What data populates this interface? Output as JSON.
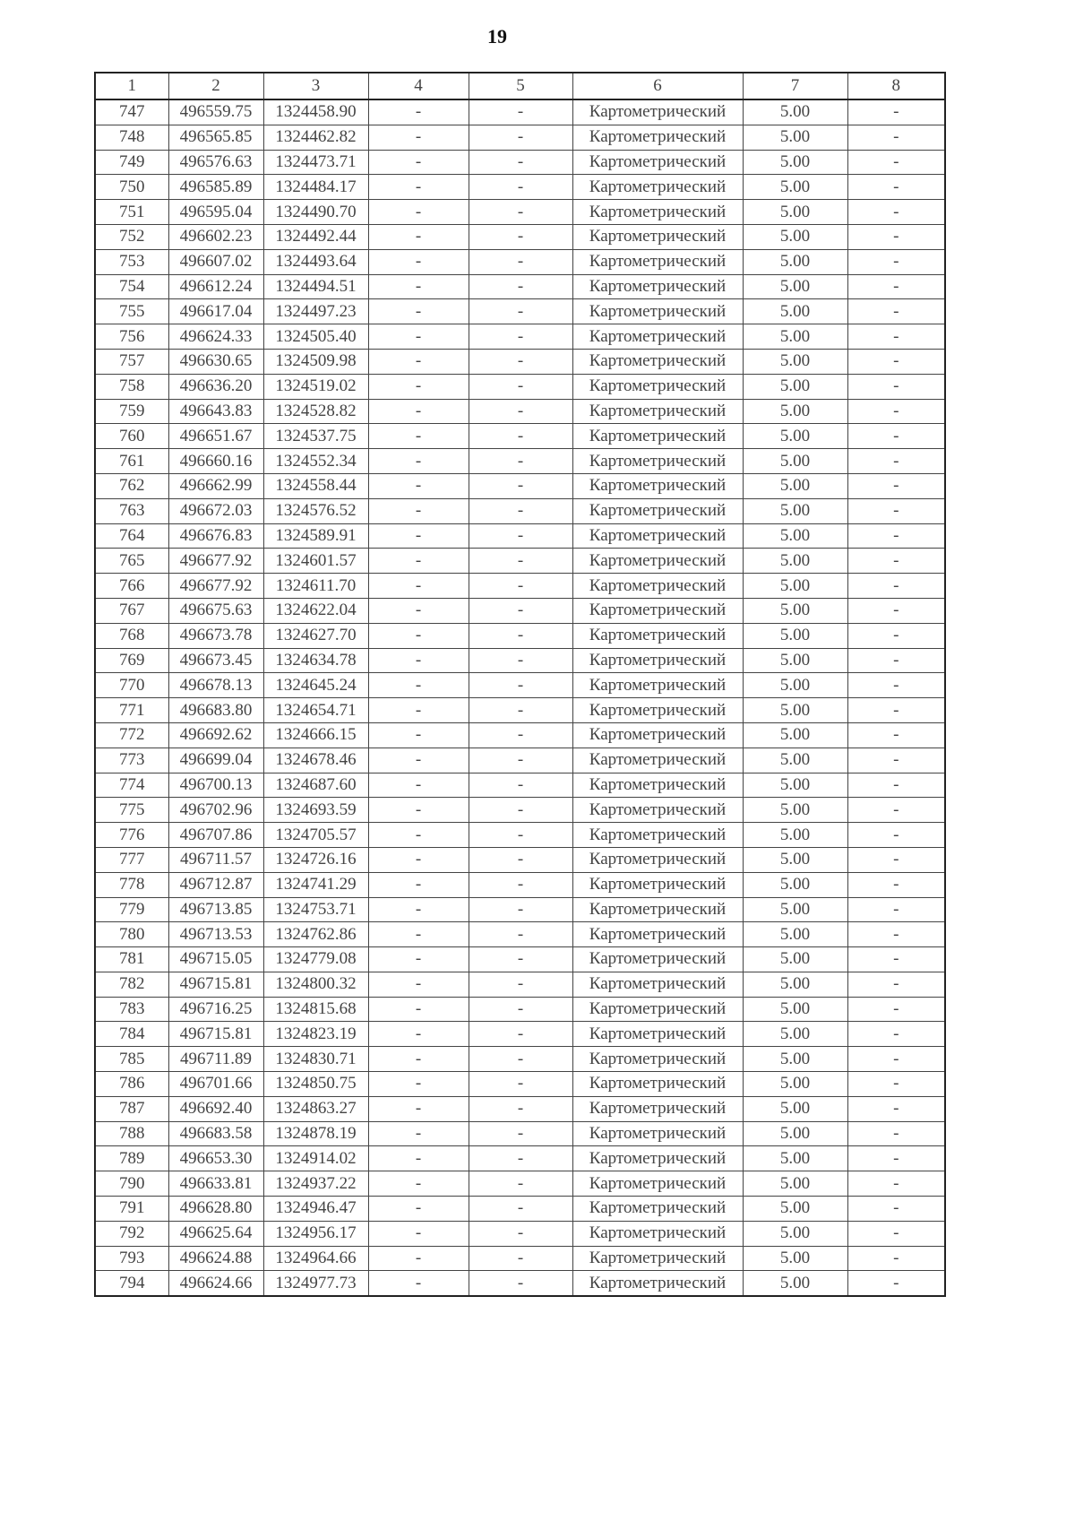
{
  "page_number": "19",
  "table": {
    "headers": [
      "1",
      "2",
      "3",
      "4",
      "5",
      "6",
      "7",
      "8"
    ],
    "rows": [
      [
        "747",
        "496559.75",
        "1324458.90",
        "-",
        "-",
        "Картометрический",
        "5.00",
        "-"
      ],
      [
        "748",
        "496565.85",
        "1324462.82",
        "-",
        "-",
        "Картометрический",
        "5.00",
        "-"
      ],
      [
        "749",
        "496576.63",
        "1324473.71",
        "-",
        "-",
        "Картометрический",
        "5.00",
        "-"
      ],
      [
        "750",
        "496585.89",
        "1324484.17",
        "-",
        "-",
        "Картометрический",
        "5.00",
        "-"
      ],
      [
        "751",
        "496595.04",
        "1324490.70",
        "-",
        "-",
        "Картометрический",
        "5.00",
        "-"
      ],
      [
        "752",
        "496602.23",
        "1324492.44",
        "-",
        "-",
        "Картометрический",
        "5.00",
        "-"
      ],
      [
        "753",
        "496607.02",
        "1324493.64",
        "-",
        "-",
        "Картометрический",
        "5.00",
        "-"
      ],
      [
        "754",
        "496612.24",
        "1324494.51",
        "-",
        "-",
        "Картометрический",
        "5.00",
        "-"
      ],
      [
        "755",
        "496617.04",
        "1324497.23",
        "-",
        "-",
        "Картометрический",
        "5.00",
        "-"
      ],
      [
        "756",
        "496624.33",
        "1324505.40",
        "-",
        "-",
        "Картометрический",
        "5.00",
        "-"
      ],
      [
        "757",
        "496630.65",
        "1324509.98",
        "-",
        "-",
        "Картометрический",
        "5.00",
        "-"
      ],
      [
        "758",
        "496636.20",
        "1324519.02",
        "-",
        "-",
        "Картометрический",
        "5.00",
        "-"
      ],
      [
        "759",
        "496643.83",
        "1324528.82",
        "-",
        "-",
        "Картометрический",
        "5.00",
        "-"
      ],
      [
        "760",
        "496651.67",
        "1324537.75",
        "-",
        "-",
        "Картометрический",
        "5.00",
        "-"
      ],
      [
        "761",
        "496660.16",
        "1324552.34",
        "-",
        "-",
        "Картометрический",
        "5.00",
        "-"
      ],
      [
        "762",
        "496662.99",
        "1324558.44",
        "-",
        "-",
        "Картометрический",
        "5.00",
        "-"
      ],
      [
        "763",
        "496672.03",
        "1324576.52",
        "-",
        "-",
        "Картометрический",
        "5.00",
        "-"
      ],
      [
        "764",
        "496676.83",
        "1324589.91",
        "-",
        "-",
        "Картометрический",
        "5.00",
        "-"
      ],
      [
        "765",
        "496677.92",
        "1324601.57",
        "-",
        "-",
        "Картометрический",
        "5.00",
        "-"
      ],
      [
        "766",
        "496677.92",
        "1324611.70",
        "-",
        "-",
        "Картометрический",
        "5.00",
        "-"
      ],
      [
        "767",
        "496675.63",
        "1324622.04",
        "-",
        "-",
        "Картометрический",
        "5.00",
        "-"
      ],
      [
        "768",
        "496673.78",
        "1324627.70",
        "-",
        "-",
        "Картометрический",
        "5.00",
        "-"
      ],
      [
        "769",
        "496673.45",
        "1324634.78",
        "-",
        "-",
        "Картометрический",
        "5.00",
        "-"
      ],
      [
        "770",
        "496678.13",
        "1324645.24",
        "-",
        "-",
        "Картометрический",
        "5.00",
        "-"
      ],
      [
        "771",
        "496683.80",
        "1324654.71",
        "-",
        "-",
        "Картометрический",
        "5.00",
        "-"
      ],
      [
        "772",
        "496692.62",
        "1324666.15",
        "-",
        "-",
        "Картометрический",
        "5.00",
        "-"
      ],
      [
        "773",
        "496699.04",
        "1324678.46",
        "-",
        "-",
        "Картометрический",
        "5.00",
        "-"
      ],
      [
        "774",
        "496700.13",
        "1324687.60",
        "-",
        "-",
        "Картометрический",
        "5.00",
        "-"
      ],
      [
        "775",
        "496702.96",
        "1324693.59",
        "-",
        "-",
        "Картометрический",
        "5.00",
        "-"
      ],
      [
        "776",
        "496707.86",
        "1324705.57",
        "-",
        "-",
        "Картометрический",
        "5.00",
        "-"
      ],
      [
        "777",
        "496711.57",
        "1324726.16",
        "-",
        "-",
        "Картометрический",
        "5.00",
        "-"
      ],
      [
        "778",
        "496712.87",
        "1324741.29",
        "-",
        "-",
        "Картометрический",
        "5.00",
        "-"
      ],
      [
        "779",
        "496713.85",
        "1324753.71",
        "-",
        "-",
        "Картометрический",
        "5.00",
        "-"
      ],
      [
        "780",
        "496713.53",
        "1324762.86",
        "-",
        "-",
        "Картометрический",
        "5.00",
        "-"
      ],
      [
        "781",
        "496715.05",
        "1324779.08",
        "-",
        "-",
        "Картометрический",
        "5.00",
        "-"
      ],
      [
        "782",
        "496715.81",
        "1324800.32",
        "-",
        "-",
        "Картометрический",
        "5.00",
        "-"
      ],
      [
        "783",
        "496716.25",
        "1324815.68",
        "-",
        "-",
        "Картометрический",
        "5.00",
        "-"
      ],
      [
        "784",
        "496715.81",
        "1324823.19",
        "-",
        "-",
        "Картометрический",
        "5.00",
        "-"
      ],
      [
        "785",
        "496711.89",
        "1324830.71",
        "-",
        "-",
        "Картометрический",
        "5.00",
        "-"
      ],
      [
        "786",
        "496701.66",
        "1324850.75",
        "-",
        "-",
        "Картометрический",
        "5.00",
        "-"
      ],
      [
        "787",
        "496692.40",
        "1324863.27",
        "-",
        "-",
        "Картометрический",
        "5.00",
        "-"
      ],
      [
        "788",
        "496683.58",
        "1324878.19",
        "-",
        "-",
        "Картометрический",
        "5.00",
        "-"
      ],
      [
        "789",
        "496653.30",
        "1324914.02",
        "-",
        "-",
        "Картометрический",
        "5.00",
        "-"
      ],
      [
        "790",
        "496633.81",
        "1324937.22",
        "-",
        "-",
        "Картометрический",
        "5.00",
        "-"
      ],
      [
        "791",
        "496628.80",
        "1324946.47",
        "-",
        "-",
        "Картометрический",
        "5.00",
        "-"
      ],
      [
        "792",
        "496625.64",
        "1324956.17",
        "-",
        "-",
        "Картометрический",
        "5.00",
        "-"
      ],
      [
        "793",
        "496624.88",
        "1324964.66",
        "-",
        "-",
        "Картометрический",
        "5.00",
        "-"
      ],
      [
        "794",
        "496624.66",
        "1324977.73",
        "-",
        "-",
        "Картометрический",
        "5.00",
        "-"
      ]
    ]
  }
}
